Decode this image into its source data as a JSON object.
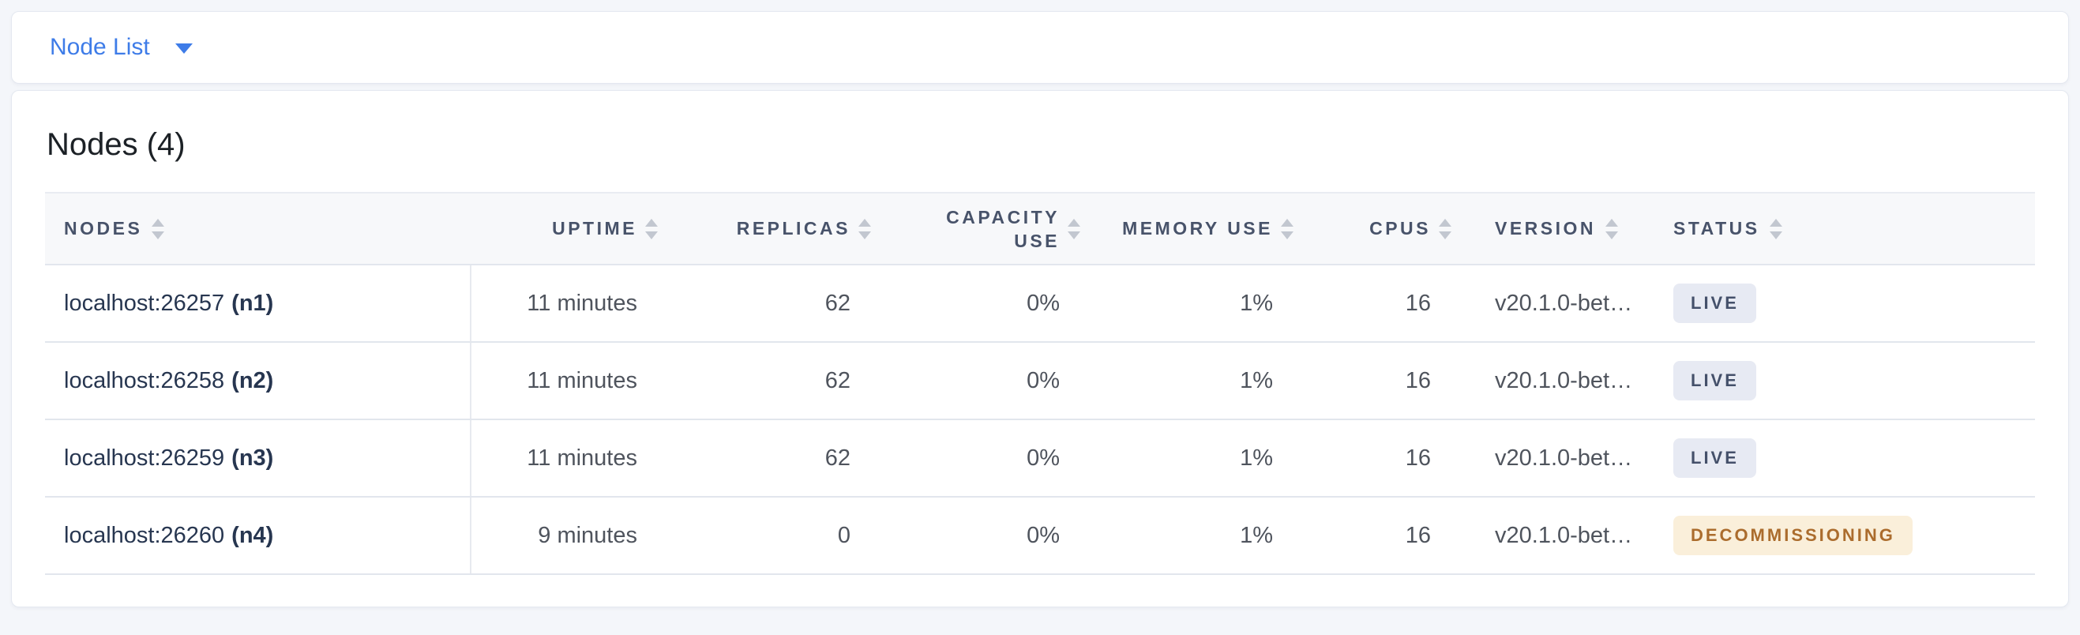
{
  "topbar": {
    "dropdown_label": "Node List",
    "dropdown_icon": "caret-down-icon"
  },
  "main": {
    "title": "Nodes (4)",
    "table": {
      "columns": [
        {
          "label": "NODES",
          "align": "left",
          "sort_icon": "sort-caret-icon"
        },
        {
          "label": "UPTIME",
          "align": "right",
          "sort_icon": "sort-caret-icon"
        },
        {
          "label": "REPLICAS",
          "align": "right",
          "sort_icon": "sort-caret-icon"
        },
        {
          "label": "CAPACITY USE",
          "align": "right",
          "sort_icon": "sort-caret-icon"
        },
        {
          "label": "MEMORY USE",
          "align": "right",
          "sort_icon": "sort-caret-icon"
        },
        {
          "label": "CPUS",
          "align": "right",
          "sort_icon": "sort-caret-icon"
        },
        {
          "label": "VERSION",
          "align": "left",
          "sort_icon": "sort-caret-icon"
        },
        {
          "label": "STATUS",
          "align": "left",
          "sort_icon": "sort-caret-icon"
        }
      ],
      "rows": [
        {
          "node_address": "localhost:26257",
          "node_id": "(n1)",
          "uptime": "11 minutes",
          "replicas": "62",
          "capacity_use": "0%",
          "memory_use": "1%",
          "cpus": "16",
          "version": "v20.1.0-bet…",
          "status": "LIVE",
          "status_type": "live"
        },
        {
          "node_address": "localhost:26258",
          "node_id": "(n2)",
          "uptime": "11 minutes",
          "replicas": "62",
          "capacity_use": "0%",
          "memory_use": "1%",
          "cpus": "16",
          "version": "v20.1.0-bet…",
          "status": "LIVE",
          "status_type": "live"
        },
        {
          "node_address": "localhost:26259",
          "node_id": "(n3)",
          "uptime": "11 minutes",
          "replicas": "62",
          "capacity_use": "0%",
          "memory_use": "1%",
          "cpus": "16",
          "version": "v20.1.0-bet…",
          "status": "LIVE",
          "status_type": "live"
        },
        {
          "node_address": "localhost:26260",
          "node_id": "(n4)",
          "uptime": "9 minutes",
          "replicas": "0",
          "capacity_use": "0%",
          "memory_use": "1%",
          "cpus": "16",
          "version": "v20.1.0-bet…",
          "status": "DECOMMISSIONING",
          "status_type": "decommissioning"
        }
      ]
    }
  },
  "colors": {
    "accent_blue": "#3e7ce8",
    "page_background": "#f4f6fa",
    "header_text": "#48536a",
    "badge_live_bg": "#e7eaf3",
    "badge_live_text": "#44506a",
    "badge_decommissioning_bg": "#faefda",
    "badge_decommissioning_text": "#ab6c2d"
  }
}
